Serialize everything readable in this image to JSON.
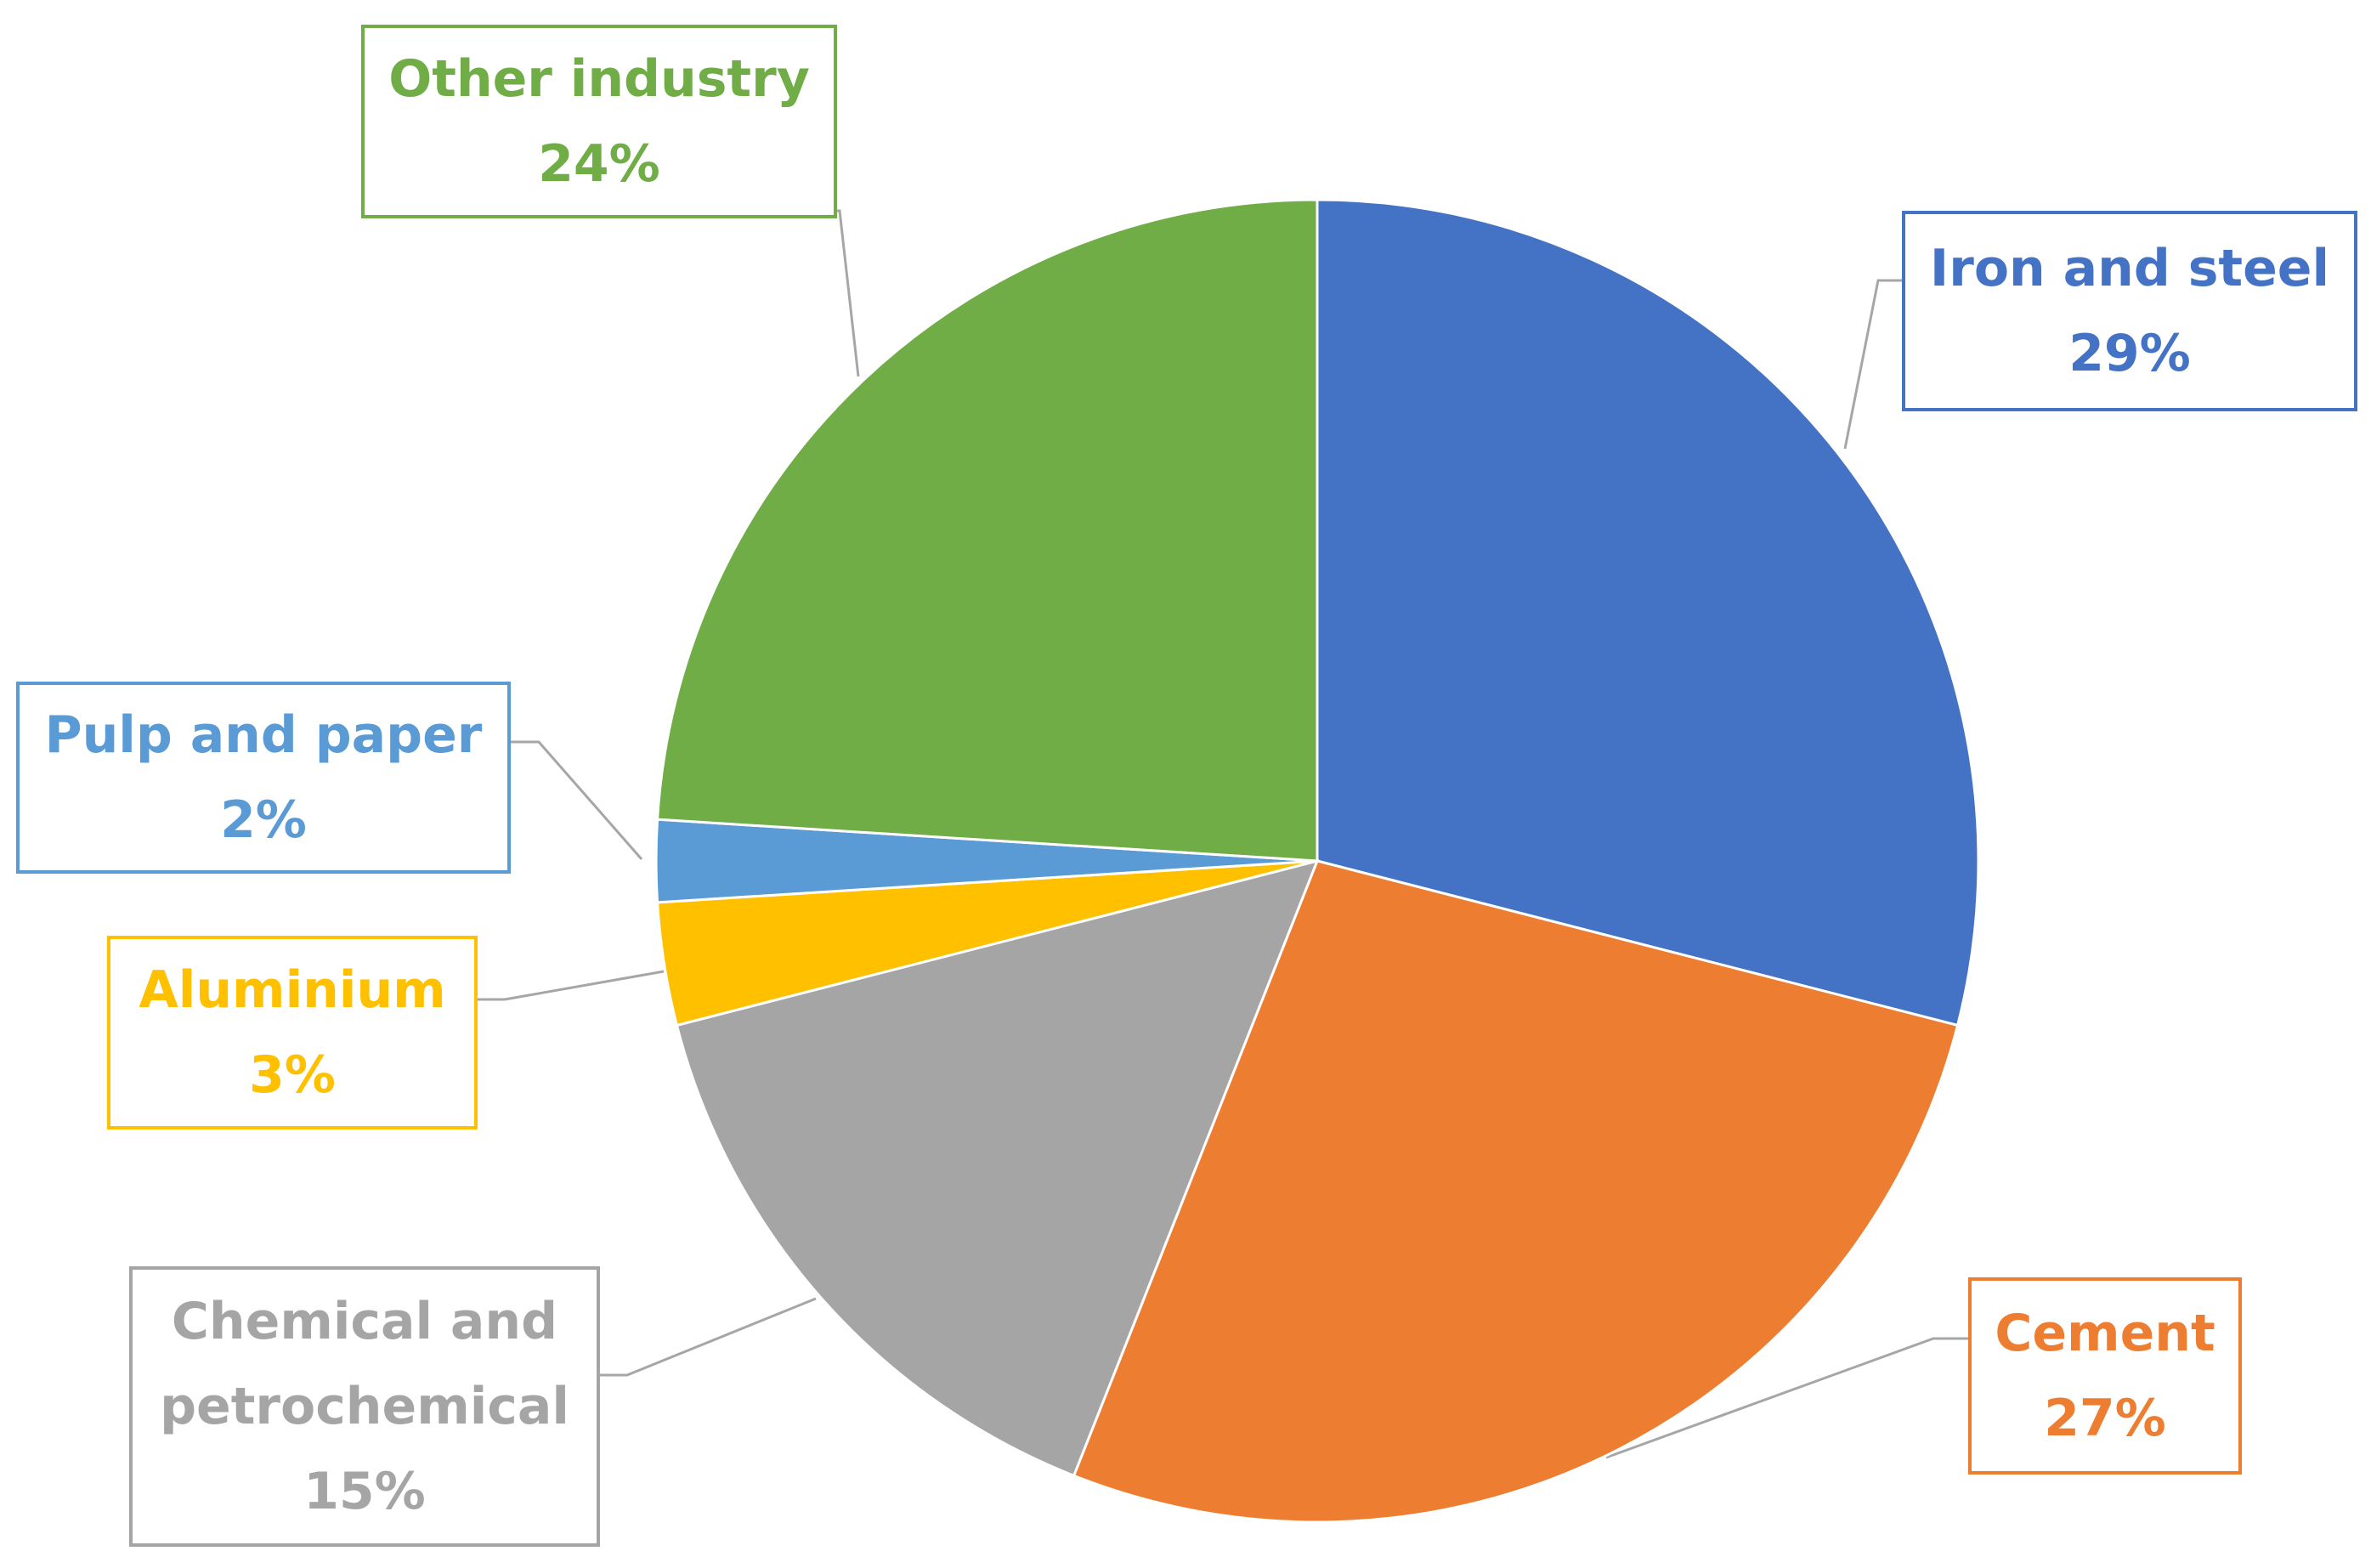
{
  "chart_data": {
    "type": "pie",
    "title": "",
    "legend": "none",
    "slices": [
      {
        "label": "Iron and steel",
        "value": 29,
        "percent_label": "29%",
        "color": "#4472C4"
      },
      {
        "label": "Cement",
        "value": 27,
        "percent_label": "27%",
        "color": "#ED7D31"
      },
      {
        "label": "Chemical and petrochemical",
        "label_lines": [
          "Chemical and",
          "petrochemical"
        ],
        "value": 15,
        "percent_label": "15%",
        "color": "#A5A5A5"
      },
      {
        "label": "Aluminium",
        "value": 3,
        "percent_label": "3%",
        "color": "#FFC000"
      },
      {
        "label": "Pulp and paper",
        "value": 2,
        "percent_label": "2%",
        "color": "#5B9BD5"
      },
      {
        "label": "Other industry",
        "value": 24,
        "percent_label": "24%",
        "color": "#70AD47"
      }
    ]
  }
}
